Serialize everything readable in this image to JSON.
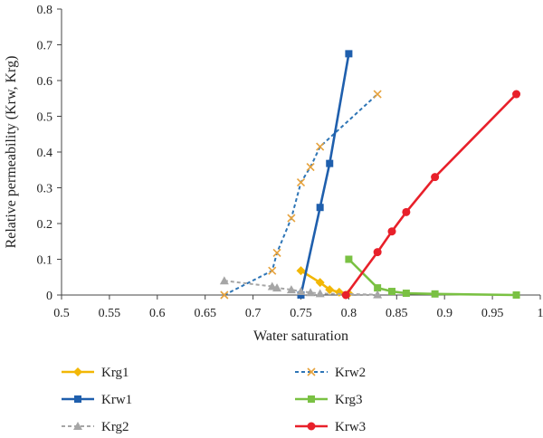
{
  "chart_data": {
    "type": "line",
    "xlabel": "Water saturation",
    "ylabel": "Relative permeability (Krw, Krg)",
    "xlim": [
      0.5,
      1
    ],
    "ylim": [
      0,
      0.8
    ],
    "x_ticks": [
      "0.5",
      "0.55",
      "0.6",
      "0.65",
      "0.7",
      "0.75",
      "0.8",
      "0.85",
      "0.9",
      "0.95",
      "1"
    ],
    "y_ticks": [
      "0",
      "0.1",
      "0.2",
      "0.3",
      "0.4",
      "0.5",
      "0.6",
      "0.7",
      "0.8"
    ],
    "grid": false,
    "legend_position": "bottom",
    "series": [
      {
        "name": "Krg1",
        "color": "#F2B705",
        "marker": "diamond",
        "line": "solid",
        "points": [
          [
            0.75,
            0.068
          ],
          [
            0.77,
            0.035
          ],
          [
            0.78,
            0.015
          ],
          [
            0.79,
            0.008
          ],
          [
            0.8,
            0.004
          ]
        ]
      },
      {
        "name": "Krw2",
        "color": "#2E75B6",
        "marker": "x",
        "line": "dashed",
        "points": [
          [
            0.67,
            0.0
          ],
          [
            0.72,
            0.068
          ],
          [
            0.725,
            0.118
          ],
          [
            0.74,
            0.215
          ],
          [
            0.75,
            0.315
          ],
          [
            0.76,
            0.358
          ],
          [
            0.77,
            0.415
          ],
          [
            0.83,
            0.562
          ]
        ]
      },
      {
        "name": "Krw1",
        "color": "#1F5FAD",
        "marker": "square",
        "line": "solid",
        "points": [
          [
            0.75,
            0.0
          ],
          [
            0.77,
            0.245
          ],
          [
            0.78,
            0.368
          ],
          [
            0.8,
            0.675
          ]
        ]
      },
      {
        "name": "Krg3",
        "color": "#7AC143",
        "marker": "square",
        "line": "solid",
        "points": [
          [
            0.8,
            0.1
          ],
          [
            0.83,
            0.02
          ],
          [
            0.845,
            0.01
          ],
          [
            0.86,
            0.005
          ],
          [
            0.89,
            0.003
          ],
          [
            0.975,
            0.0
          ]
        ]
      },
      {
        "name": "Krg2",
        "color": "#A6A6A6",
        "marker": "triangle",
        "line": "dashed",
        "points": [
          [
            0.67,
            0.04
          ],
          [
            0.72,
            0.024
          ],
          [
            0.725,
            0.02
          ],
          [
            0.74,
            0.015
          ],
          [
            0.75,
            0.01
          ],
          [
            0.76,
            0.007
          ],
          [
            0.77,
            0.004
          ],
          [
            0.83,
            0.001
          ]
        ]
      },
      {
        "name": "Krw3",
        "color": "#E8202A",
        "marker": "circle",
        "line": "solid",
        "points": [
          [
            0.797,
            0.0
          ],
          [
            0.83,
            0.12
          ],
          [
            0.845,
            0.178
          ],
          [
            0.86,
            0.232
          ],
          [
            0.89,
            0.33
          ],
          [
            0.975,
            0.562
          ]
        ]
      }
    ]
  }
}
